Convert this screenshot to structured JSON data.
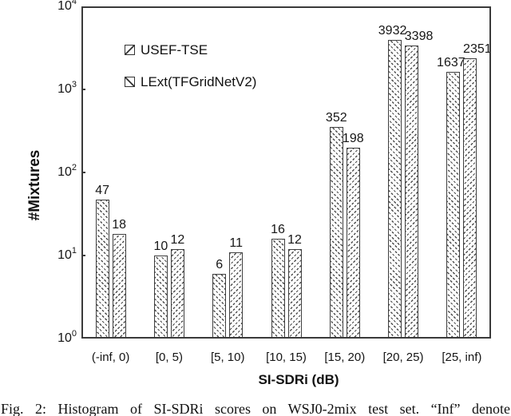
{
  "chart_data": {
    "type": "bar",
    "title": "",
    "categories": [
      "(-inf, 0)",
      "[0, 5)",
      "[5, 10)",
      "[10, 15)",
      "[15, 20)",
      "[20, 25)",
      "[25, inf)"
    ],
    "series": [
      {
        "name": "USEF-TSE",
        "hatch": "backslash",
        "values": [
          47,
          10,
          6,
          16,
          352,
          3932,
          1637
        ]
      },
      {
        "name": "LExt(TFGridNetV2)",
        "hatch": "slash",
        "values": [
          18,
          12,
          11,
          12,
          198,
          3398,
          2351
        ]
      }
    ],
    "xlabel": "SI-SDRi (dB)",
    "ylabel": "#Mixtures",
    "y_scale": "log",
    "ylim": [
      1,
      10000
    ],
    "y_tick_exponents": [
      0,
      1,
      2,
      3,
      4
    ],
    "legend_position": "upper-left-inside",
    "grid": false,
    "axis_color": "#3a3a3a",
    "bar_outline_color": "#3f3f3f",
    "text_color": "#111111"
  },
  "caption": "Fig. 2: Histogram of SI-SDRi scores on WSJ0-2mix test set. “Inf” denote"
}
